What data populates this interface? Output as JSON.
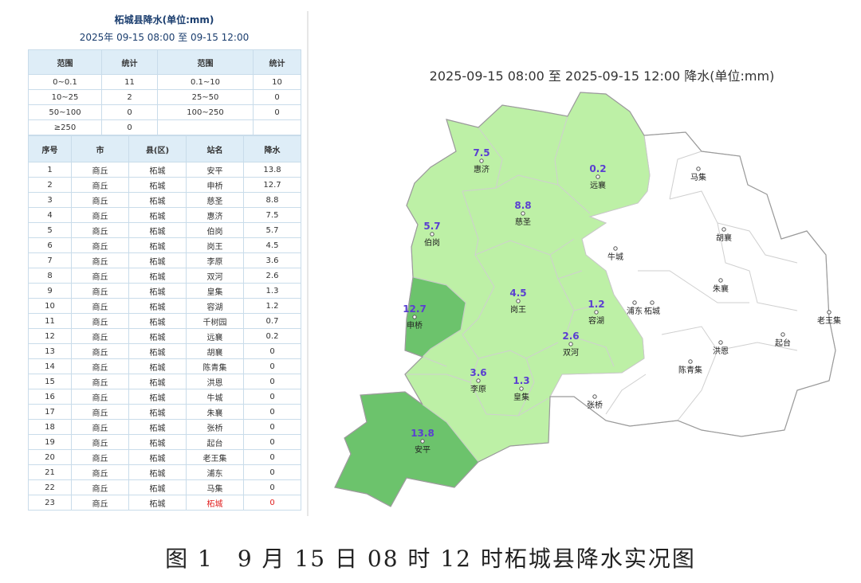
{
  "panel": {
    "title": "柘城县降水(单位:mm)",
    "period": "2025年 09-15 08:00 至 09-15 12:00",
    "stats_headers": [
      "范围",
      "统计",
      "范围",
      "统计"
    ],
    "stats_rows": [
      [
        "0~0.1",
        "11",
        "0.1~10",
        "10"
      ],
      [
        "10~25",
        "2",
        "25~50",
        "0"
      ],
      [
        "50~100",
        "0",
        "100~250",
        "0"
      ],
      [
        "≥250",
        "0",
        "",
        ""
      ]
    ],
    "station_headers": [
      "序号",
      "市",
      "县(区)",
      "站名",
      "降水"
    ],
    "stations": [
      [
        "1",
        "商丘",
        "柘城",
        "安平",
        "13.8"
      ],
      [
        "2",
        "商丘",
        "柘城",
        "申桥",
        "12.7"
      ],
      [
        "3",
        "商丘",
        "柘城",
        "慈圣",
        "8.8"
      ],
      [
        "4",
        "商丘",
        "柘城",
        "惠济",
        "7.5"
      ],
      [
        "5",
        "商丘",
        "柘城",
        "伯岗",
        "5.7"
      ],
      [
        "6",
        "商丘",
        "柘城",
        "岗王",
        "4.5"
      ],
      [
        "7",
        "商丘",
        "柘城",
        "李原",
        "3.6"
      ],
      [
        "8",
        "商丘",
        "柘城",
        "双河",
        "2.6"
      ],
      [
        "9",
        "商丘",
        "柘城",
        "皇集",
        "1.3"
      ],
      [
        "10",
        "商丘",
        "柘城",
        "容湖",
        "1.2"
      ],
      [
        "11",
        "商丘",
        "柘城",
        "千树园",
        "0.7"
      ],
      [
        "12",
        "商丘",
        "柘城",
        "远襄",
        "0.2"
      ],
      [
        "13",
        "商丘",
        "柘城",
        "胡襄",
        "0"
      ],
      [
        "14",
        "商丘",
        "柘城",
        "陈青集",
        "0"
      ],
      [
        "15",
        "商丘",
        "柘城",
        "洪恩",
        "0"
      ],
      [
        "16",
        "商丘",
        "柘城",
        "牛城",
        "0"
      ],
      [
        "17",
        "商丘",
        "柘城",
        "朱襄",
        "0"
      ],
      [
        "18",
        "商丘",
        "柘城",
        "张桥",
        "0"
      ],
      [
        "19",
        "商丘",
        "柘城",
        "起台",
        "0"
      ],
      [
        "20",
        "商丘",
        "柘城",
        "老王集",
        "0"
      ],
      [
        "21",
        "商丘",
        "柘城",
        "浦东",
        "0"
      ],
      [
        "22",
        "商丘",
        "柘城",
        "马集",
        "0"
      ],
      [
        "23",
        "商丘",
        "柘城",
        "柘城",
        "0"
      ]
    ]
  },
  "map": {
    "title": "2025-09-15 08:00 至 2025-09-15 12:00 降水(单位:mm)",
    "colors": {
      "light": "#bdf0a6",
      "medium": "#6cc36c",
      "none": "#ffffff"
    },
    "labeled_stations": [
      {
        "name": "惠济",
        "value": "7.5"
      },
      {
        "name": "远襄",
        "value": "0.2"
      },
      {
        "name": "慈圣",
        "value": "8.8"
      },
      {
        "name": "伯岗",
        "value": "5.7"
      },
      {
        "name": "岗王",
        "value": "4.5"
      },
      {
        "name": "申桥",
        "value": "12.7"
      },
      {
        "name": "容湖",
        "value": "1.2"
      },
      {
        "name": "双河",
        "value": "2.6"
      },
      {
        "name": "李原",
        "value": "3.6"
      },
      {
        "name": "皇集",
        "value": "1.3"
      },
      {
        "name": "安平",
        "value": "13.8"
      }
    ],
    "other_stations": [
      "马集",
      "胡襄",
      "牛城",
      "朱襄",
      "浦东",
      "柘城",
      "老王集",
      "洪恩",
      "起台",
      "陈青集",
      "张桥"
    ]
  },
  "caption": "图 1　9 月 15 日 08 时 12 时柘城县降水实况图"
}
